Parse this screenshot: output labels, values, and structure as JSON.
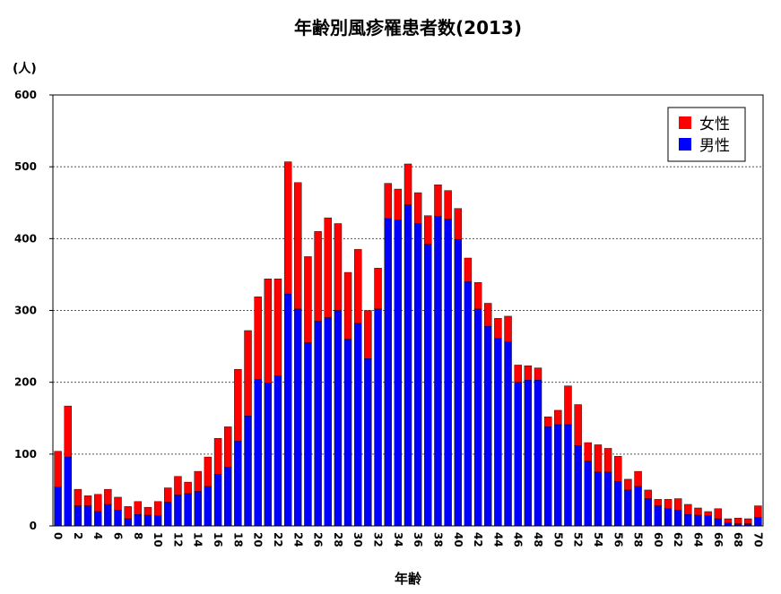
{
  "chart_data": {
    "type": "bar",
    "stacked": true,
    "title": "年齢別風疹罹患者数(2013)",
    "ylabel": "(人)",
    "xlabel": "年齢",
    "ylim": [
      0,
      600
    ],
    "yticks": [
      0,
      100,
      200,
      300,
      400,
      500,
      600
    ],
    "grid": true,
    "legend_position": "top-right",
    "categories": [
      0,
      1,
      2,
      3,
      4,
      5,
      6,
      7,
      8,
      9,
      10,
      11,
      12,
      13,
      14,
      15,
      16,
      17,
      18,
      19,
      20,
      21,
      22,
      23,
      24,
      25,
      26,
      27,
      28,
      29,
      30,
      31,
      32,
      33,
      34,
      35,
      36,
      37,
      38,
      39,
      40,
      41,
      42,
      43,
      44,
      45,
      46,
      47,
      48,
      49,
      50,
      51,
      52,
      53,
      54,
      55,
      56,
      57,
      58,
      59,
      60,
      61,
      62,
      63,
      64,
      65,
      66,
      67,
      68,
      69,
      70
    ],
    "xtick_labels": [
      "0",
      "2",
      "4",
      "6",
      "8",
      "10",
      "12",
      "14",
      "16",
      "18",
      "20",
      "22",
      "24",
      "26",
      "28",
      "30",
      "32",
      "34",
      "36",
      "38",
      "40",
      "42",
      "44",
      "46",
      "48",
      "50",
      "52",
      "54",
      "56",
      "58",
      "60",
      "62",
      "64",
      "66",
      "68",
      "70"
    ],
    "series": [
      {
        "name": "男性",
        "color": "#0000ff",
        "values": [
          54,
          96,
          28,
          28,
          20,
          30,
          22,
          10,
          16,
          15,
          14,
          33,
          43,
          45,
          48,
          55,
          72,
          82,
          118,
          153,
          204,
          199,
          209,
          323,
          302,
          255,
          285,
          290,
          300,
          260,
          282,
          233,
          302,
          428,
          426,
          447,
          421,
          392,
          431,
          427,
          399,
          340,
          302,
          278,
          261,
          256,
          200,
          203,
          203,
          138,
          141,
          141,
          112,
          90,
          75,
          75,
          62,
          50,
          55,
          38,
          28,
          24,
          22,
          16,
          15,
          14,
          10,
          4,
          3,
          3,
          12
        ]
      },
      {
        "name": "女性",
        "color": "#ff0000",
        "values": [
          50,
          71,
          23,
          14,
          24,
          21,
          18,
          17,
          18,
          11,
          20,
          20,
          26,
          16,
          28,
          41,
          50,
          56,
          100,
          119,
          115,
          145,
          135,
          184,
          176,
          120,
          125,
          139,
          121,
          93,
          103,
          67,
          57,
          49,
          43,
          57,
          43,
          40,
          44,
          40,
          43,
          33,
          37,
          32,
          28,
          36,
          24,
          20,
          17,
          14,
          20,
          54,
          57,
          26,
          38,
          33,
          35,
          15,
          21,
          12,
          9,
          13,
          16,
          14,
          10,
          6,
          14,
          6,
          8,
          7,
          16
        ]
      }
    ]
  },
  "legend": {
    "items": [
      {
        "label": "女性",
        "color": "#ff0000"
      },
      {
        "label": "男性",
        "color": "#0000ff"
      }
    ]
  }
}
